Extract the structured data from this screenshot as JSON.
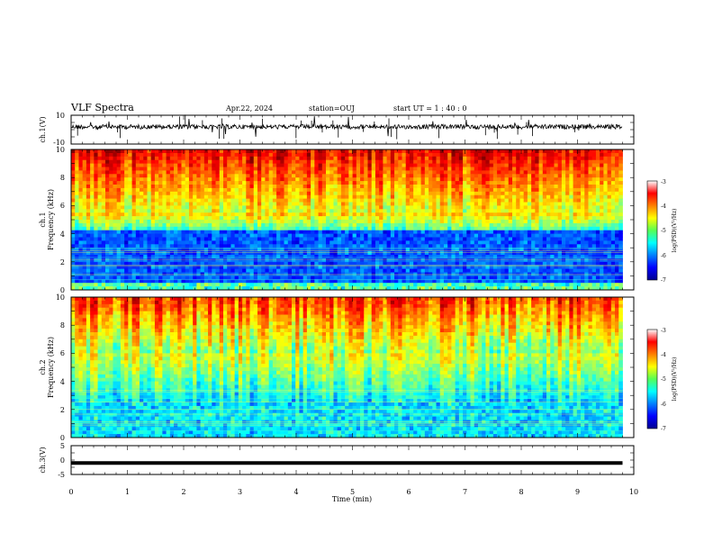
{
  "header": {
    "title": "VLF Spectra",
    "date": "Apr.22, 2024",
    "station": "station=OUJ",
    "start": "start  UT =   1 : 40 : 0"
  },
  "chart_data": [
    {
      "type": "line",
      "panel": "ch1-waveform",
      "ylabel": "ch.1(V)",
      "ylim": [
        -10,
        10
      ],
      "y_ticks": [
        "10",
        "-10"
      ],
      "xlim": [
        0,
        10
      ],
      "series": [
        {
          "baseline": 2.0,
          "x_end": 9.8
        }
      ]
    },
    {
      "type": "heatmap",
      "panel": "ch1-spectrogram",
      "ylabel": "ch.1",
      "ylabel2": "Frequency (kHz)",
      "ylim": [
        0,
        10
      ],
      "y_ticks": [
        "0",
        "2",
        "4",
        "6",
        "8",
        "10"
      ],
      "xlim": [
        0,
        10
      ],
      "data_x_end": 9.8,
      "colorbar": {
        "label": "log(PSD)(V²/Hz)",
        "range": [
          -7,
          -3
        ],
        "ticks": [
          "-3",
          "-4",
          "-5",
          "-6",
          "-7"
        ]
      }
    },
    {
      "type": "heatmap",
      "panel": "ch2-spectrogram",
      "ylabel": "ch.2",
      "ylabel2": "Frequency (kHz)",
      "ylim": [
        0,
        10
      ],
      "y_ticks": [
        "0",
        "2",
        "4",
        "6",
        "8",
        "10"
      ],
      "xlim": [
        0,
        10
      ],
      "data_x_end": 9.8,
      "colorbar": {
        "label": "log(PSD)(V²/Hz)",
        "range": [
          -7,
          -3
        ],
        "ticks": [
          "-3",
          "-4",
          "-5",
          "-6",
          "-7"
        ]
      }
    },
    {
      "type": "line",
      "panel": "ch3-waveform",
      "ylabel": "ch.3(V)",
      "ylim": [
        -5,
        5
      ],
      "y_ticks": [
        "5",
        "0",
        "-5"
      ],
      "xlim": [
        0,
        10
      ],
      "series": [
        {
          "baseline": -1.0,
          "x_end": 9.8
        }
      ]
    }
  ],
  "x_axis": {
    "label": "Time (min)",
    "ticks": [
      "0",
      "1",
      "2",
      "3",
      "4",
      "5",
      "6",
      "7",
      "8",
      "9",
      "10"
    ]
  }
}
